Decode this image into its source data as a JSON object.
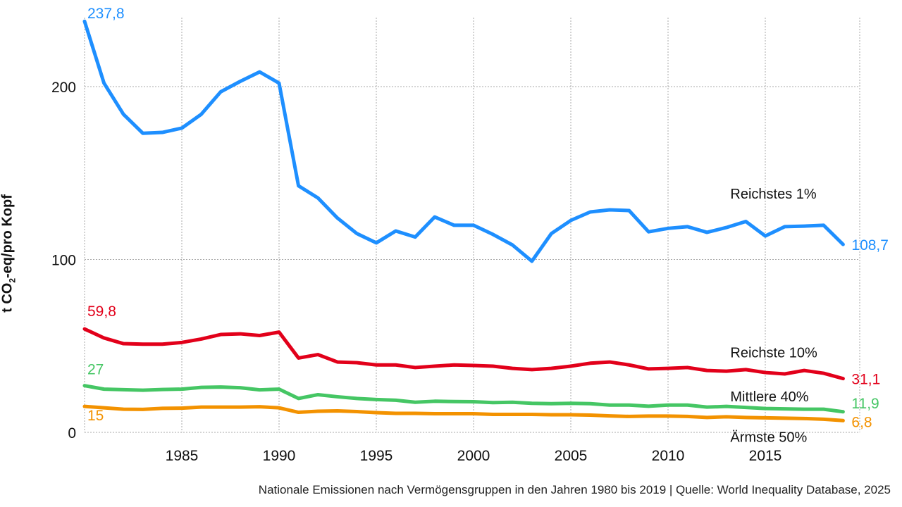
{
  "chart_data": {
    "type": "line",
    "title": "",
    "ylabel_parts": [
      "t CO",
      "2",
      "-eq/pro Kopf"
    ],
    "xlabel": "",
    "xlim": [
      1980,
      2019
    ],
    "ylim": [
      0,
      240
    ],
    "xticks": [
      1985,
      1990,
      1995,
      2000,
      2005,
      2010,
      2015
    ],
    "yticks": [
      0,
      100,
      200
    ],
    "grid": true,
    "x": [
      1980,
      1981,
      1982,
      1983,
      1984,
      1985,
      1986,
      1987,
      1988,
      1989,
      1990,
      1991,
      1992,
      1993,
      1994,
      1995,
      1996,
      1997,
      1998,
      1999,
      2000,
      2001,
      2002,
      2003,
      2004,
      2005,
      2006,
      2007,
      2008,
      2009,
      2010,
      2011,
      2012,
      2013,
      2014,
      2015,
      2016,
      2017,
      2018,
      2019
    ],
    "series": [
      {
        "name": "Reichstes 1%",
        "color": "#1e8fff",
        "start_label": "237,8",
        "end_label": "108,7",
        "values": [
          237.8,
          202,
          184,
          173,
          173.5,
          176,
          184,
          197,
          203,
          208.5,
          202,
          142.6,
          135.6,
          124,
          115,
          109.6,
          116.5,
          113,
          124.6,
          119.8,
          119.8,
          114.5,
          108.4,
          99,
          115,
          122.6,
          127.5,
          128.7,
          128.3,
          116,
          118,
          119,
          115.7,
          118.5,
          122,
          113.6,
          119,
          119.3,
          119.8,
          108.7
        ]
      },
      {
        "name": "Reichste 10%",
        "color": "#e2001a",
        "start_label": "59,8",
        "end_label": "31,1",
        "values": [
          59.8,
          54.6,
          51.3,
          51,
          51,
          52,
          54,
          56.6,
          57,
          56,
          58,
          43,
          45,
          40.7,
          40.3,
          39,
          39,
          37.5,
          38.3,
          39,
          38.7,
          38.3,
          37,
          36.3,
          37,
          38.3,
          40,
          40.7,
          39,
          36.7,
          37,
          37.5,
          35.8,
          35.4,
          36.3,
          34.6,
          33.8,
          35.8,
          34.2,
          31.1
        ]
      },
      {
        "name": "Mittlere 40%",
        "color": "#45c664",
        "start_label": "27",
        "end_label": "11,9",
        "values": [
          27,
          25,
          24.7,
          24.4,
          24.8,
          25,
          26,
          26.2,
          25.8,
          24.6,
          25,
          19.6,
          21.8,
          20.6,
          19.6,
          19,
          18.6,
          17.4,
          18,
          17.8,
          17.7,
          17.2,
          17.4,
          16.8,
          16.6,
          16.8,
          16.6,
          15.8,
          15.8,
          15.1,
          15.8,
          15.8,
          14.6,
          15,
          14.4,
          13.8,
          13.6,
          13.4,
          13.4,
          11.9
        ]
      },
      {
        "name": "Ärmste 50%",
        "color": "#f39200",
        "start_label": "15",
        "end_label": "6,8",
        "values": [
          15,
          14.2,
          13.4,
          13.3,
          13.9,
          14,
          14.6,
          14.6,
          14.6,
          14.8,
          14.2,
          11.6,
          12.2,
          12.4,
          12,
          11.4,
          11,
          11,
          10.8,
          10.8,
          10.8,
          10.4,
          10.4,
          10.4,
          10.2,
          10.2,
          10,
          9.5,
          9.2,
          9.4,
          9.4,
          9.2,
          8.6,
          9,
          8.6,
          8.4,
          8.2,
          8,
          7.6,
          6.8
        ]
      }
    ]
  },
  "caption": "Nationale Emissionen nach Vermögensgruppen in den Jahren 1980 bis 2019 | Quelle: World Inequality Database, 2025"
}
